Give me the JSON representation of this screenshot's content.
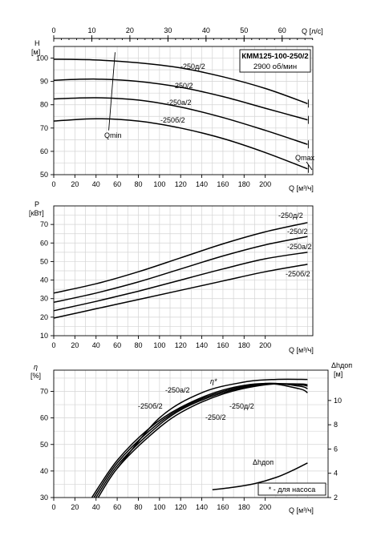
{
  "chart_data": [
    {
      "type": "line",
      "ylabel": "H",
      "yunit": "[м]",
      "xlabel_bottom": "Q [м³/ч]",
      "xlabel_top": "Q [л/с]",
      "xlim": [
        0,
        245
      ],
      "ylim": [
        50,
        105
      ],
      "xticks": [
        0,
        20,
        40,
        60,
        80,
        100,
        120,
        140,
        160,
        180,
        200
      ],
      "yticks": [
        50,
        60,
        70,
        80,
        90,
        100
      ],
      "top_xticks": [
        0,
        10,
        20,
        30,
        40,
        50,
        60
      ],
      "top_xlim": [
        0,
        68.06
      ],
      "title_line1": "КММ125-100-250/2",
      "title_line2": "2900 об/мин",
      "annotations": [
        {
          "text": "Qmin",
          "x": 56,
          "y": 65
        },
        {
          "text": "Qmax",
          "x": 232,
          "y": 55
        }
      ],
      "series": [
        {
          "name": "-250д/2",
          "x": [
            0,
            40,
            80,
            120,
            160,
            200,
            240
          ],
          "y": [
            99.5,
            99.2,
            98,
            95.8,
            92,
            87,
            80.5
          ]
        },
        {
          "name": "-250/2",
          "x": [
            0,
            40,
            80,
            120,
            160,
            200,
            240
          ],
          "y": [
            90.5,
            91,
            90,
            87.5,
            83.5,
            78.5,
            73.5
          ]
        },
        {
          "name": "-250a/2",
          "x": [
            0,
            40,
            80,
            120,
            160,
            200,
            240
          ],
          "y": [
            82.5,
            83,
            82,
            79,
            74.5,
            69,
            63
          ]
        },
        {
          "name": "-250б/2",
          "x": [
            0,
            40,
            80,
            120,
            160,
            200,
            240
          ],
          "y": [
            73,
            74,
            73,
            70,
            65.5,
            59.5,
            52.5
          ]
        }
      ]
    },
    {
      "type": "line",
      "ylabel": "P",
      "yunit": "[кВт]",
      "xlabel_bottom": "Q [м³/ч]",
      "xlim": [
        0,
        245
      ],
      "ylim": [
        10,
        80
      ],
      "xticks": [
        0,
        20,
        40,
        60,
        80,
        100,
        120,
        140,
        160,
        180,
        200
      ],
      "yticks": [
        10,
        20,
        30,
        40,
        50,
        60,
        70
      ],
      "series": [
        {
          "name": "-250д/2",
          "x": [
            0,
            40,
            80,
            120,
            160,
            200,
            240
          ],
          "y": [
            33,
            38,
            44.5,
            52,
            59.5,
            66,
            71
          ]
        },
        {
          "name": "-250/2",
          "x": [
            0,
            40,
            80,
            120,
            160,
            200,
            240
          ],
          "y": [
            28,
            33,
            39,
            46,
            53,
            59,
            63.5
          ]
        },
        {
          "name": "-250a/2",
          "x": [
            0,
            40,
            80,
            120,
            160,
            200,
            240
          ],
          "y": [
            23.5,
            28.5,
            34,
            40,
            46,
            51.5,
            55
          ]
        },
        {
          "name": "-250б/2",
          "x": [
            0,
            40,
            80,
            120,
            160,
            200,
            240
          ],
          "y": [
            19.5,
            24.5,
            29.5,
            34.5,
            39.5,
            44.5,
            48.5
          ]
        }
      ]
    },
    {
      "type": "line",
      "ylabel": "η",
      "yunit": "[%]",
      "ylabel_right": "Δhдоп",
      "yunit_right": "[м]",
      "xlabel_bottom": "Q [м³/ч]",
      "xlim": [
        0,
        245
      ],
      "ylim": [
        30,
        78
      ],
      "ylim_right": [
        2,
        12.5
      ],
      "xticks": [
        0,
        20,
        40,
        60,
        80,
        100,
        120,
        140,
        160,
        180,
        200
      ],
      "yticks": [
        30,
        40,
        50,
        60,
        70
      ],
      "yticks_right": [
        2,
        4,
        6,
        8,
        10
      ],
      "note": "* - для насоса",
      "eta_pump_label": "η*",
      "npsh_label": "Δhдоп",
      "series": [
        {
          "name": "-250б/2",
          "x": [
            36,
            60,
            90,
            120,
            160,
            200,
            232,
            240
          ],
          "y": [
            30,
            44,
            56,
            64,
            70.5,
            73,
            71,
            69.5
          ]
        },
        {
          "name": "-250a/2",
          "x": [
            38,
            60,
            90,
            120,
            160,
            200,
            232,
            240
          ],
          "y": [
            30,
            43,
            55,
            63.5,
            70,
            73,
            72,
            71
          ]
        },
        {
          "name": "-250/2",
          "x": [
            40,
            60,
            90,
            120,
            160,
            200,
            232,
            240
          ],
          "y": [
            30,
            42,
            54,
            63,
            69.5,
            72.8,
            72.5,
            72
          ]
        },
        {
          "name": "-250д/2",
          "x": [
            42,
            60,
            90,
            120,
            160,
            200,
            232,
            240
          ],
          "y": [
            30,
            41,
            53,
            62,
            69,
            72.5,
            72.8,
            72.5
          ]
        },
        {
          "name": "η*",
          "x": [
            60,
            100,
            140,
            180,
            210,
            240
          ],
          "y": [
            41,
            60,
            69.5,
            73.5,
            74.5,
            74.5
          ]
        },
        {
          "name": "Δhдоп",
          "axis": "right",
          "x": [
            150,
            170,
            190,
            210,
            225,
            240
          ],
          "y": [
            2.65,
            2.85,
            3.15,
            3.65,
            4.2,
            4.85
          ]
        }
      ]
    }
  ]
}
